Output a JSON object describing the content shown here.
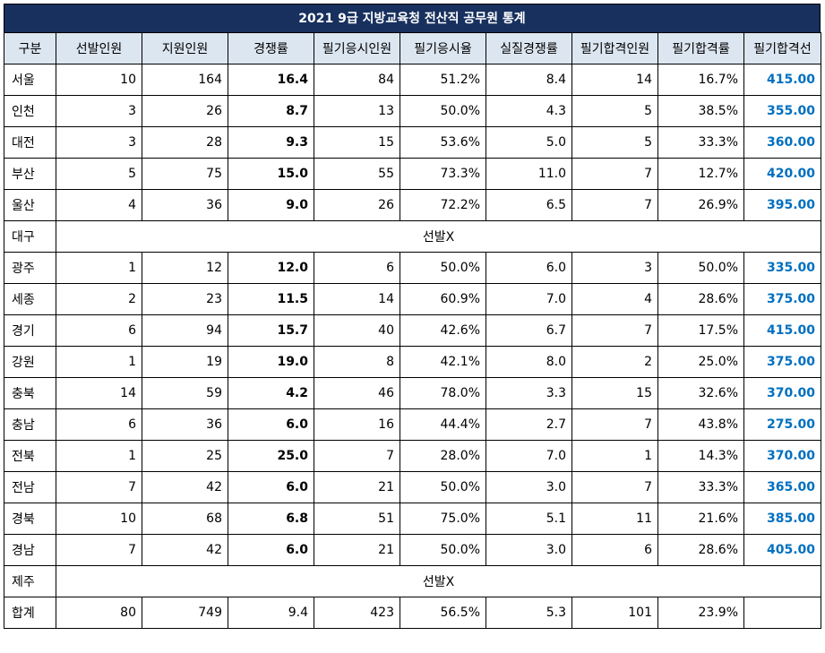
{
  "title": "2021 9급 지방교육청 전산직 공무원 통계",
  "headers": [
    "구분",
    "선발인원",
    "지원인원",
    "경쟁률",
    "필기응시인원",
    "필기응시율",
    "실질경쟁률",
    "필기합격인원",
    "필기합격률",
    "필기합격선"
  ],
  "rows": [
    {
      "region": "서울",
      "cells": [
        "10",
        "164",
        "16.4",
        "84",
        "51.2%",
        "8.4",
        "14",
        "16.7%",
        "415.00"
      ]
    },
    {
      "region": "인천",
      "cells": [
        "3",
        "26",
        "8.7",
        "13",
        "50.0%",
        "4.3",
        "5",
        "38.5%",
        "355.00"
      ]
    },
    {
      "region": "대전",
      "cells": [
        "3",
        "28",
        "9.3",
        "15",
        "53.6%",
        "5.0",
        "5",
        "33.3%",
        "360.00"
      ]
    },
    {
      "region": "부산",
      "cells": [
        "5",
        "75",
        "15.0",
        "55",
        "73.3%",
        "11.0",
        "7",
        "12.7%",
        "420.00"
      ]
    },
    {
      "region": "울산",
      "cells": [
        "4",
        "36",
        "9.0",
        "26",
        "72.2%",
        "6.5",
        "7",
        "26.9%",
        "395.00"
      ]
    },
    {
      "region": "대구",
      "note": "선발X"
    },
    {
      "region": "광주",
      "cells": [
        "1",
        "12",
        "12.0",
        "6",
        "50.0%",
        "6.0",
        "3",
        "50.0%",
        "335.00"
      ]
    },
    {
      "region": "세종",
      "cells": [
        "2",
        "23",
        "11.5",
        "14",
        "60.9%",
        "7.0",
        "4",
        "28.6%",
        "375.00"
      ]
    },
    {
      "region": "경기",
      "cells": [
        "6",
        "94",
        "15.7",
        "40",
        "42.6%",
        "6.7",
        "7",
        "17.5%",
        "415.00"
      ]
    },
    {
      "region": "강원",
      "cells": [
        "1",
        "19",
        "19.0",
        "8",
        "42.1%",
        "8.0",
        "2",
        "25.0%",
        "375.00"
      ]
    },
    {
      "region": "충북",
      "cells": [
        "14",
        "59",
        "4.2",
        "46",
        "78.0%",
        "3.3",
        "15",
        "32.6%",
        "370.00"
      ]
    },
    {
      "region": "충남",
      "cells": [
        "6",
        "36",
        "6.0",
        "16",
        "44.4%",
        "2.7",
        "7",
        "43.8%",
        "275.00"
      ]
    },
    {
      "region": "전북",
      "cells": [
        "1",
        "25",
        "25.0",
        "7",
        "28.0%",
        "7.0",
        "1",
        "14.3%",
        "370.00"
      ]
    },
    {
      "region": "전남",
      "cells": [
        "7",
        "42",
        "6.0",
        "21",
        "50.0%",
        "3.0",
        "7",
        "33.3%",
        "365.00"
      ]
    },
    {
      "region": "경북",
      "cells": [
        "10",
        "68",
        "6.8",
        "51",
        "75.0%",
        "5.1",
        "11",
        "21.6%",
        "385.00"
      ]
    },
    {
      "region": "경남",
      "cells": [
        "7",
        "42",
        "6.0",
        "21",
        "50.0%",
        "3.0",
        "6",
        "28.6%",
        "405.00"
      ]
    },
    {
      "region": "제주",
      "note": "선발X"
    },
    {
      "region": "합계",
      "total": true,
      "cells": [
        "80",
        "749",
        "9.4",
        "423",
        "56.5%",
        "5.3",
        "101",
        "23.9%",
        ""
      ]
    }
  ],
  "colors": {
    "title_bg": "#17305e",
    "header_bg": "#dce6f1",
    "cutoff_text": "#0070c0"
  }
}
